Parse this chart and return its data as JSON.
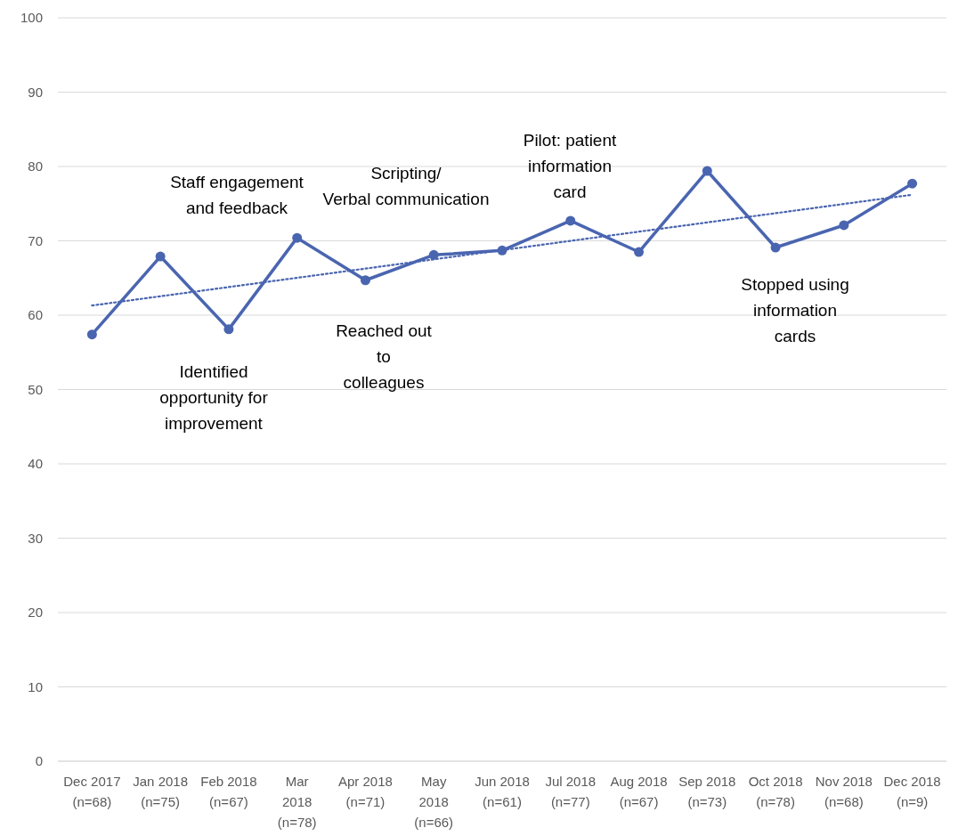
{
  "chart_data": {
    "type": "line",
    "categories": [
      "Dec 2017\n(n=68)",
      "Jan 2018\n(n=75)",
      "Feb 2018\n(n=67)",
      "Mar\n2018\n(n=78)",
      "Apr 2018\n(n=71)",
      "May\n2018\n(n=66)",
      "Jun 2018\n(n=61)",
      "Jul 2018\n(n=77)",
      "Aug 2018\n(n=67)",
      "Sep 2018\n(n=73)",
      "Oct 2018\n(n=78)",
      "Nov 2018\n(n=68)",
      "Dec 2018\n(n=9)"
    ],
    "series": [
      {
        "color": "#4a65b0",
        "values": [
          57.4,
          67.9,
          58.1,
          70.4,
          64.7,
          68.1,
          68.7,
          72.7,
          68.5,
          79.4,
          69.1,
          72.1,
          77.7
        ],
        "marker": "circle",
        "line_style": "solid"
      },
      {
        "type": "line",
        "color": "#4a65b0",
        "x": [
          "Dec 2017\n(n=68)",
          "Dec 2018\n(n=9)"
        ],
        "values": [
          61.3,
          76.2
        ],
        "marker": "none",
        "line_style": "dotted"
      }
    ],
    "ylim": [
      0,
      100
    ],
    "yticks": [
      0,
      10,
      20,
      30,
      40,
      50,
      60,
      70,
      80,
      90,
      100
    ],
    "grid": "y",
    "annotations": [
      "Staff engagement\nand feedback",
      "Identified\nopportunity for\nimprovement",
      "Scripting/\nVerbal communication",
      "Reached out\nto\ncolleagues",
      "Pilot: patient\ninformation\ncard",
      "Stopped using\ninformation\ncards"
    ]
  }
}
